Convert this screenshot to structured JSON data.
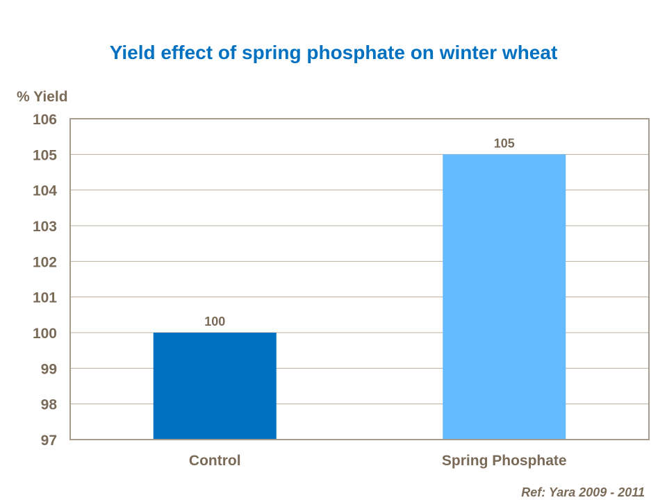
{
  "chart_data": {
    "type": "bar",
    "title": "Yield effect of spring phosphate on winter wheat",
    "ylabel": "% Yield",
    "xlabel": "",
    "categories": [
      "Control",
      "Spring Phosphate"
    ],
    "values": [
      100,
      105
    ],
    "data_labels": [
      "100",
      "105"
    ],
    "colors": [
      "#0070c0",
      "#66bbff"
    ],
    "ylim": [
      97,
      106
    ],
    "yticks": [
      97,
      98,
      99,
      100,
      101,
      102,
      103,
      104,
      105,
      106
    ],
    "grid": true,
    "legend": "none",
    "annotation": "Ref: Yara 2009 - 2011"
  }
}
